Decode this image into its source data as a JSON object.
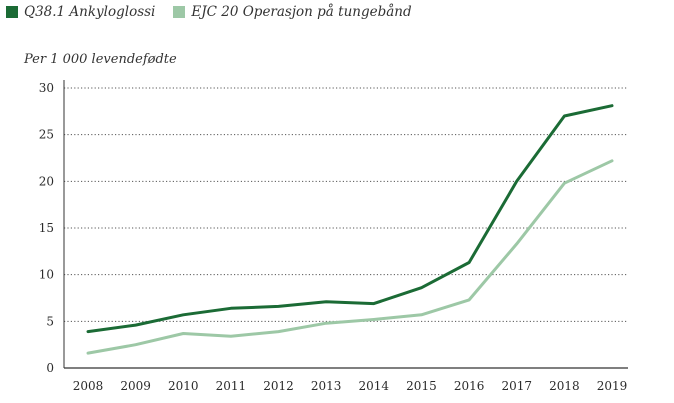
{
  "colors": {
    "series1": "#1b6b35",
    "series2": "#9dc8a6",
    "grid": "#555555",
    "axis": "#333333"
  },
  "chart_data": {
    "type": "line",
    "title": "",
    "xlabel": "",
    "ylabel": "Per 1 000 levendefødte",
    "ylim": [
      0,
      30
    ],
    "yticks": [
      0,
      5,
      10,
      15,
      20,
      25,
      30
    ],
    "grid": "horizontal-dotted",
    "legend_position": "top-left",
    "x": [
      "2008",
      "2009",
      "2010",
      "2011",
      "2012",
      "2013",
      "2014",
      "2015",
      "2016",
      "2017",
      "2018",
      "2019"
    ],
    "series": [
      {
        "name": "Q38.1 Ankyloglossi",
        "color": "#1b6b35",
        "values": [
          3.9,
          4.6,
          5.7,
          6.4,
          6.6,
          7.1,
          6.9,
          8.6,
          11.3,
          20.0,
          27.0,
          28.1
        ]
      },
      {
        "name": "EJC 20 Operasjon på tungebånd",
        "color": "#9dc8a6",
        "values": [
          1.6,
          2.5,
          3.7,
          3.4,
          3.9,
          4.8,
          5.2,
          5.7,
          7.3,
          13.3,
          19.8,
          22.2
        ]
      }
    ]
  }
}
